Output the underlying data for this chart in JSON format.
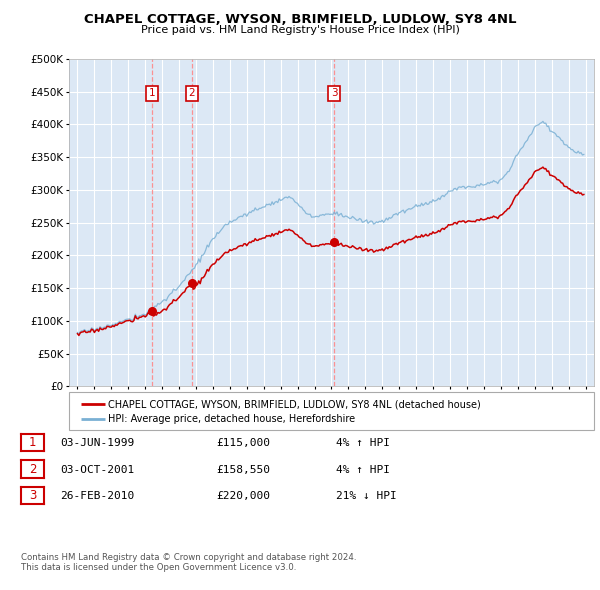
{
  "title": "CHAPEL COTTAGE, WYSON, BRIMFIELD, LUDLOW, SY8 4NL",
  "subtitle": "Price paid vs. HM Land Registry's House Price Index (HPI)",
  "legend_label_red": "CHAPEL COTTAGE, WYSON, BRIMFIELD, LUDLOW, SY8 4NL (detached house)",
  "legend_label_blue": "HPI: Average price, detached house, Herefordshire",
  "footer1": "Contains HM Land Registry data © Crown copyright and database right 2024.",
  "footer2": "This data is licensed under the Open Government Licence v3.0.",
  "transactions": [
    {
      "num": 1,
      "date": "03-JUN-1999",
      "price": 115000,
      "hpi_pct": "4%",
      "hpi_dir": "↑"
    },
    {
      "num": 2,
      "date": "03-OCT-2001",
      "price": 158550,
      "hpi_pct": "4%",
      "hpi_dir": "↑"
    },
    {
      "num": 3,
      "date": "26-FEB-2010",
      "price": 220000,
      "hpi_pct": "21%",
      "hpi_dir": "↓"
    }
  ],
  "transaction_years": [
    1999.42,
    2001.75,
    2010.15
  ],
  "transaction_prices": [
    115000,
    158550,
    220000
  ],
  "ylim": [
    0,
    500000
  ],
  "yticks": [
    0,
    50000,
    100000,
    150000,
    200000,
    250000,
    300000,
    350000,
    400000,
    450000,
    500000
  ],
  "xlim_start": 1994.5,
  "xlim_end": 2025.5,
  "plot_bg_color": "#dce8f5",
  "red_color": "#cc0000",
  "blue_color": "#7ab0d4",
  "grid_color": "#ffffff",
  "vline_color": "#ff8888",
  "hpi_base_points": [
    [
      1995.0,
      82000
    ],
    [
      1996.0,
      87000
    ],
    [
      1997.0,
      94000
    ],
    [
      1998.0,
      102000
    ],
    [
      1999.0,
      110000
    ],
    [
      2000.0,
      130000
    ],
    [
      2001.0,
      152000
    ],
    [
      2002.0,
      185000
    ],
    [
      2003.0,
      225000
    ],
    [
      2004.0,
      252000
    ],
    [
      2005.0,
      263000
    ],
    [
      2006.0,
      275000
    ],
    [
      2007.0,
      285000
    ],
    [
      2007.5,
      290000
    ],
    [
      2008.0,
      278000
    ],
    [
      2008.5,
      265000
    ],
    [
      2009.0,
      258000
    ],
    [
      2009.5,
      262000
    ],
    [
      2010.0,
      265000
    ],
    [
      2010.5,
      263000
    ],
    [
      2011.0,
      258000
    ],
    [
      2011.5,
      255000
    ],
    [
      2012.0,
      252000
    ],
    [
      2012.5,
      250000
    ],
    [
      2013.0,
      252000
    ],
    [
      2013.5,
      258000
    ],
    [
      2014.0,
      265000
    ],
    [
      2014.5,
      270000
    ],
    [
      2015.0,
      275000
    ],
    [
      2015.5,
      278000
    ],
    [
      2016.0,
      283000
    ],
    [
      2016.5,
      290000
    ],
    [
      2017.0,
      298000
    ],
    [
      2017.5,
      303000
    ],
    [
      2018.0,
      305000
    ],
    [
      2018.5,
      307000
    ],
    [
      2019.0,
      310000
    ],
    [
      2019.5,
      312000
    ],
    [
      2020.0,
      315000
    ],
    [
      2020.5,
      330000
    ],
    [
      2021.0,
      355000
    ],
    [
      2021.5,
      375000
    ],
    [
      2022.0,
      395000
    ],
    [
      2022.5,
      405000
    ],
    [
      2023.0,
      390000
    ],
    [
      2023.5,
      378000
    ],
    [
      2024.0,
      365000
    ],
    [
      2024.5,
      358000
    ],
    [
      2024.9,
      355000
    ]
  ]
}
